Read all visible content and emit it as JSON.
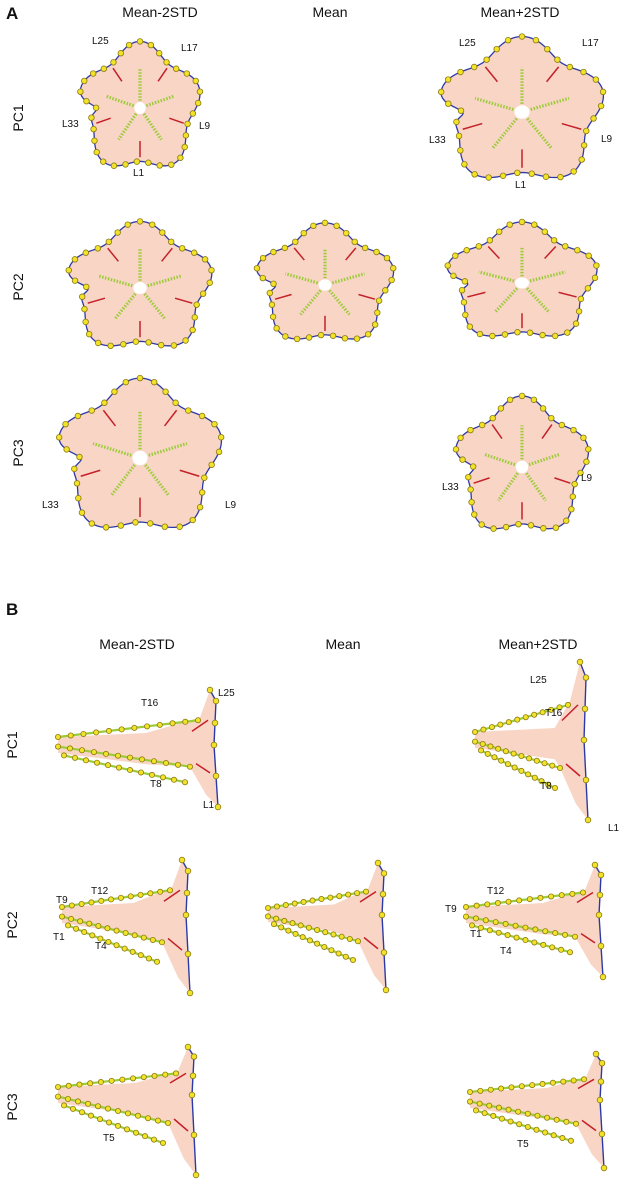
{
  "panel_a": {
    "letter": "A",
    "columns": [
      "Mean-2STD",
      "Mean",
      "Mean+2STD"
    ],
    "rows": [
      "PC1",
      "PC2",
      "PC3"
    ],
    "labels": {
      "pc1_m2": [
        "L25",
        "L17",
        "L33",
        "L9",
        "L1"
      ],
      "pc1_p2": [
        "L25",
        "L17",
        "L33",
        "L9",
        "L1"
      ],
      "pc3_m2": [
        "L33",
        "L9"
      ],
      "pc3_p2": [
        "L33",
        "L9"
      ]
    }
  },
  "panel_b": {
    "letter": "B",
    "columns": [
      "Mean-2STD",
      "Mean",
      "Mean+2STD"
    ],
    "rows": [
      "PC1",
      "PC2",
      "PC3"
    ],
    "labels": {
      "pc1_m2": [
        "T16",
        "L25",
        "T8",
        "L1"
      ],
      "pc1_p2": [
        "L25",
        "T16",
        "T8",
        "L1"
      ],
      "pc2_m2": [
        "T9",
        "T12",
        "T1",
        "T4"
      ],
      "pc2_p2": [
        "T12",
        "T9",
        "T1",
        "T4"
      ],
      "pc3_m2": [
        "T5"
      ],
      "pc3_p2": [
        "T5"
      ]
    }
  },
  "colors": {
    "fill": "#f9d5c5",
    "outline": "#2b3aa8",
    "landmark": "#f2e229",
    "landmark_stroke": "#8a7a10",
    "mesh": "#9ccb3a",
    "accent": "#c4202a"
  }
}
